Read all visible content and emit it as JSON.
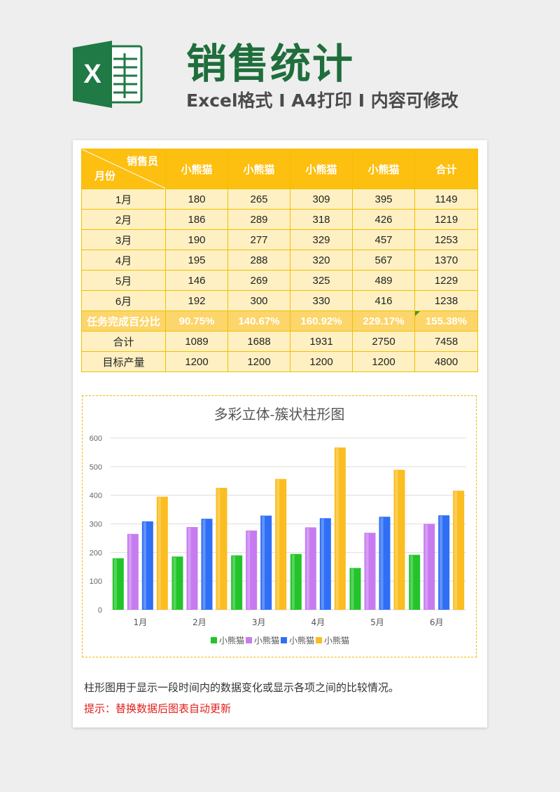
{
  "header": {
    "title": "销售统计",
    "subtitle": "Excel格式 I A4打印 I 内容可修改",
    "logo_letter": "X"
  },
  "table": {
    "corner_top": "销售员",
    "corner_bottom": "月份",
    "columns": [
      "小熊猫",
      "小熊猫",
      "小熊猫",
      "小熊猫",
      "合计"
    ],
    "rows": [
      {
        "label": "1月",
        "values": [
          "180",
          "265",
          "309",
          "395",
          "1149"
        ]
      },
      {
        "label": "2月",
        "values": [
          "186",
          "289",
          "318",
          "426",
          "1219"
        ]
      },
      {
        "label": "3月",
        "values": [
          "190",
          "277",
          "329",
          "457",
          "1253"
        ]
      },
      {
        "label": "4月",
        "values": [
          "195",
          "288",
          "320",
          "567",
          "1370"
        ]
      },
      {
        "label": "5月",
        "values": [
          "146",
          "269",
          "325",
          "489",
          "1229"
        ]
      },
      {
        "label": "6月",
        "values": [
          "192",
          "300",
          "330",
          "416",
          "1238"
        ]
      }
    ],
    "pct_row": {
      "label": "任务完成百分比",
      "values": [
        "90.75%",
        "140.67%",
        "160.92%",
        "229.17%",
        "155.38%"
      ]
    },
    "total_row": {
      "label": "合计",
      "values": [
        "1089",
        "1688",
        "1931",
        "2750",
        "7458"
      ]
    },
    "target_row": {
      "label": "目标产量",
      "values": [
        "1200",
        "1200",
        "1200",
        "1200",
        "4800"
      ]
    }
  },
  "chart_data": {
    "type": "bar",
    "title": "多彩立体-簇状柱形图",
    "categories": [
      "1月",
      "2月",
      "3月",
      "4月",
      "5月",
      "6月"
    ],
    "series": [
      {
        "name": "小熊猫",
        "color": "#22c42a",
        "values": [
          180,
          186,
          190,
          195,
          146,
          192
        ]
      },
      {
        "name": "小熊猫",
        "color": "#c77bf0",
        "values": [
          265,
          289,
          277,
          288,
          269,
          300
        ]
      },
      {
        "name": "小熊猫",
        "color": "#2f6ff5",
        "values": [
          309,
          318,
          329,
          320,
          325,
          330
        ]
      },
      {
        "name": "小熊猫",
        "color": "#fbbd1f",
        "values": [
          395,
          426,
          457,
          567,
          489,
          416
        ]
      }
    ],
    "yticks": [
      "0",
      "100",
      "200",
      "300",
      "400",
      "500",
      "600"
    ],
    "ylim": [
      0,
      600
    ],
    "grid": true,
    "legend": "bottom"
  },
  "notes": {
    "description": "柱形图用于显示一段时间内的数据变化或显示各项之间的比较情况。",
    "tip": "提示：替换数据后图表自动更新"
  }
}
